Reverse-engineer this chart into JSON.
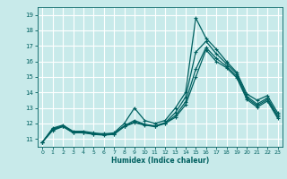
{
  "title": "",
  "xlabel": "Humidex (Indice chaleur)",
  "background_color": "#c8eaea",
  "grid_color": "#ffffff",
  "line_color": "#006060",
  "xlim": [
    -0.5,
    23.5
  ],
  "ylim": [
    10.5,
    19.5
  ],
  "yticks": [
    11,
    12,
    13,
    14,
    15,
    16,
    17,
    18,
    19
  ],
  "xticks": [
    0,
    1,
    2,
    3,
    4,
    5,
    6,
    7,
    8,
    9,
    10,
    11,
    12,
    13,
    14,
    15,
    16,
    17,
    18,
    19,
    20,
    21,
    22,
    23
  ],
  "series": [
    {
      "x": [
        0,
        1,
        2,
        3,
        4,
        5,
        6,
        7,
        8,
        9,
        10,
        11,
        12,
        13,
        14,
        15,
        16,
        17,
        18,
        19,
        20,
        21,
        22,
        23
      ],
      "y": [
        10.8,
        11.7,
        11.9,
        11.5,
        11.5,
        11.4,
        11.3,
        11.4,
        12.0,
        13.0,
        12.2,
        12.0,
        12.2,
        13.0,
        14.0,
        18.8,
        17.5,
        16.8,
        16.0,
        15.3,
        13.9,
        13.5,
        13.8,
        12.7
      ]
    },
    {
      "x": [
        0,
        1,
        2,
        3,
        4,
        5,
        6,
        7,
        8,
        9,
        10,
        11,
        12,
        13,
        14,
        15,
        16,
        17,
        18,
        19,
        20,
        21,
        22,
        23
      ],
      "y": [
        10.8,
        11.65,
        11.85,
        11.45,
        11.45,
        11.35,
        11.35,
        11.35,
        11.85,
        12.2,
        11.95,
        11.85,
        12.05,
        12.7,
        13.7,
        16.6,
        17.3,
        16.5,
        15.85,
        15.2,
        13.75,
        13.25,
        13.65,
        12.55
      ]
    },
    {
      "x": [
        0,
        1,
        2,
        3,
        4,
        5,
        6,
        7,
        8,
        9,
        10,
        11,
        12,
        13,
        14,
        15,
        16,
        17,
        18,
        19,
        20,
        21,
        22,
        23
      ],
      "y": [
        10.8,
        11.6,
        11.82,
        11.42,
        11.42,
        11.32,
        11.28,
        11.32,
        11.82,
        12.1,
        11.92,
        11.82,
        12.02,
        12.5,
        13.4,
        15.5,
        16.9,
        16.2,
        15.7,
        15.05,
        13.65,
        13.15,
        13.55,
        12.45
      ]
    },
    {
      "x": [
        0,
        1,
        2,
        3,
        4,
        5,
        6,
        7,
        8,
        9,
        10,
        11,
        12,
        13,
        14,
        15,
        16,
        17,
        18,
        19,
        20,
        21,
        22,
        23
      ],
      "y": [
        10.8,
        11.55,
        11.8,
        11.4,
        11.4,
        11.3,
        11.25,
        11.3,
        11.8,
        12.05,
        11.9,
        11.8,
        12.0,
        12.4,
        13.2,
        15.0,
        16.75,
        16.0,
        15.6,
        14.95,
        13.55,
        13.05,
        13.45,
        12.35
      ]
    }
  ]
}
